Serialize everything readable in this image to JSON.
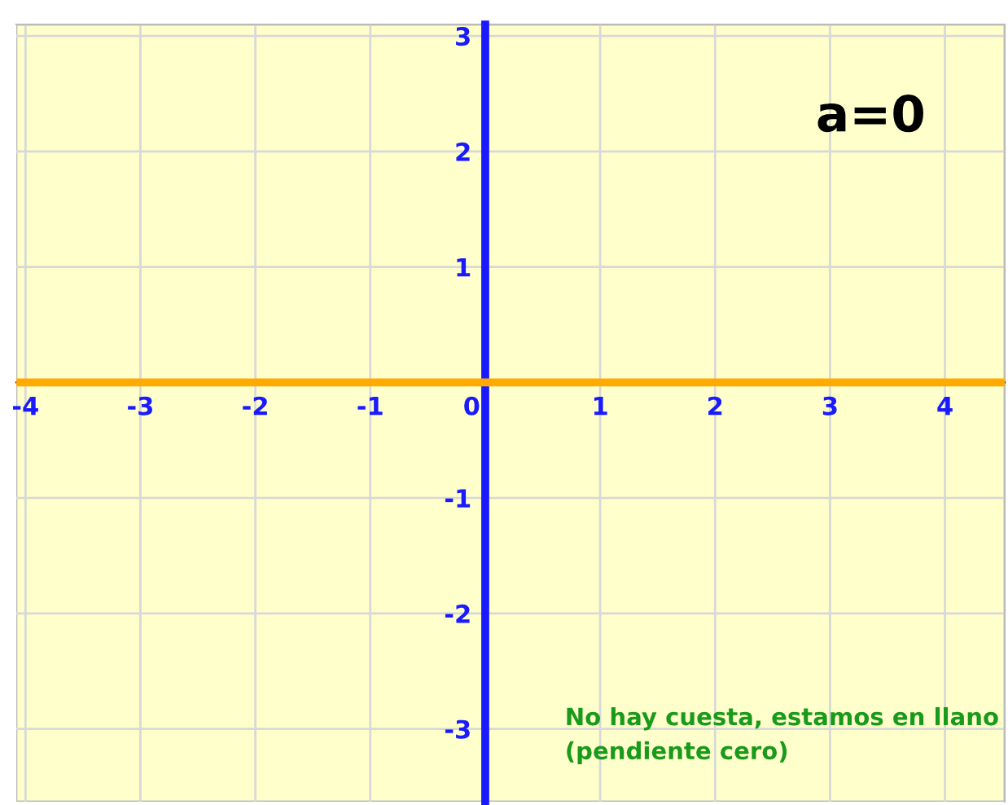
{
  "chart_data": {
    "type": "line",
    "x": [
      -4.08,
      4.52
    ],
    "series": [
      {
        "color": "#ffaa00",
        "values": [
          0,
          0
        ]
      }
    ],
    "xlim": [
      -4.08,
      4.52
    ],
    "ylim": [
      -3.63,
      3.1
    ],
    "xticks": [
      -4,
      -3,
      -2,
      -1,
      0,
      1,
      2,
      3,
      4
    ],
    "yticks": [
      -3,
      -2,
      -1,
      {
        "value": 0,
        "label": null
      },
      1,
      2,
      3
    ],
    "grid": true,
    "marker": "none",
    "line_style": "solid",
    "annotations": [
      "a=0",
      "No hay cuesta, estamos en llano\n(pendiente cero)"
    ]
  }
}
